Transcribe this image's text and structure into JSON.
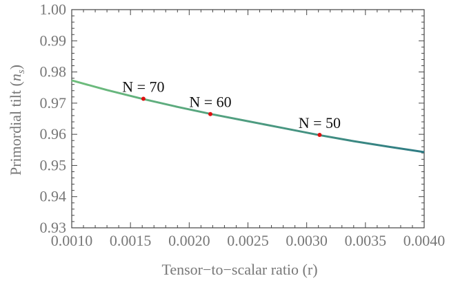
{
  "chart_data": {
    "type": "line",
    "title": "",
    "xlabel": "Tensor−to−scalar ratio (r)",
    "ylabel_main": "Primordial tilt (",
    "ylabel_sym": "n",
    "ylabel_sub": "s",
    "ylabel_close": ")",
    "xlim": [
      0.001,
      0.004
    ],
    "ylim": [
      0.93,
      1.0
    ],
    "x_ticks": [
      0.001,
      0.0015,
      0.002,
      0.0025,
      0.003,
      0.0035,
      0.004
    ],
    "x_tick_labels": [
      "0.0010",
      "0.0015",
      "0.0020",
      "0.0025",
      "0.0030",
      "0.0035",
      "0.0040"
    ],
    "y_ticks": [
      0.93,
      0.94,
      0.95,
      0.96,
      0.97,
      0.98,
      0.99,
      1.0
    ],
    "y_tick_labels": [
      "0.93",
      "0.94",
      "0.95",
      "0.96",
      "0.97",
      "0.98",
      "0.99",
      "1.00"
    ],
    "grid": false,
    "series": [
      {
        "x": [
          0.001,
          0.0013,
          0.0016,
          0.0019,
          0.0022,
          0.0025,
          0.0028,
          0.0031,
          0.0034,
          0.0037,
          0.004
        ],
        "y": [
          0.9773,
          0.9742,
          0.9714,
          0.9688,
          0.9664,
          0.9642,
          0.962,
          0.9598,
          0.9578,
          0.956,
          0.9543
        ],
        "color_start": "#6fbe7c",
        "color_end": "#2e7b84"
      }
    ],
    "points": [
      {
        "label": "N = 70",
        "x": 0.00161,
        "y": 0.9714
      },
      {
        "label": "N = 60",
        "x": 0.00218,
        "y": 0.9665
      },
      {
        "label": "N = 50",
        "x": 0.00311,
        "y": 0.9598
      }
    ],
    "point_color": "#dd1111"
  }
}
